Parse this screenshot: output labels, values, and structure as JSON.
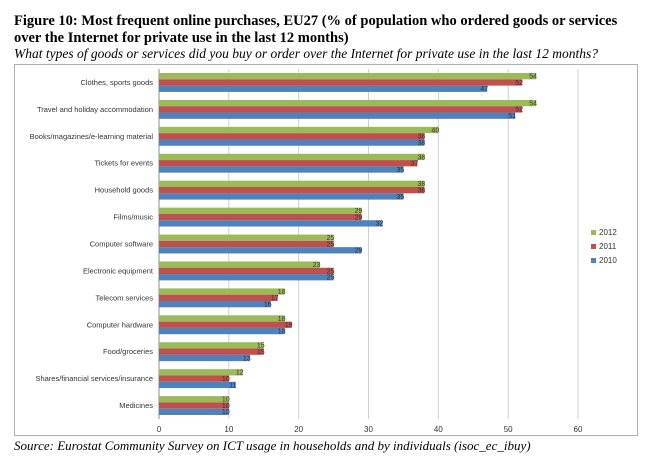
{
  "title": "Figure 10: Most frequent online purchases, EU27 (% of population who ordered goods or services over the Internet for private use in the last 12 months)",
  "subtitle": "What types of goods or services did you buy or order over the Internet for private use in the last 12 months?",
  "source": "Source: Eurostat Community Survey on ICT usage in households and by individuals (isoc_ec_ibuy)",
  "chart_data": {
    "type": "bar",
    "orientation": "horizontal",
    "categories": [
      "Clothes, sports goods",
      "Travel and holiday accommodation",
      "Books/magazines/e-learning material",
      "Tickets for events",
      "Household goods",
      "Films/music",
      "Computer software",
      "Electronic equipment",
      "Telecom services",
      "Computer hardware",
      "Food/groceries",
      "Shares/financial services/insurance",
      "Medicines"
    ],
    "series": [
      {
        "name": "2012",
        "color": "#9bbb59",
        "values": [
          54,
          54,
          40,
          38,
          38,
          29,
          25,
          23,
          18,
          18,
          15,
          12,
          10
        ]
      },
      {
        "name": "2011",
        "color": "#c0504d",
        "values": [
          52,
          52,
          38,
          37,
          38,
          29,
          25,
          25,
          17,
          19,
          15,
          10,
          10
        ]
      },
      {
        "name": "2010",
        "color": "#4f81bd",
        "values": [
          47,
          51,
          38,
          35,
          35,
          32,
          29,
          25,
          16,
          18,
          13,
          11,
          10
        ]
      }
    ],
    "xlim": [
      0,
      60
    ],
    "xticks": [
      0,
      10,
      20,
      30,
      40,
      50,
      60
    ],
    "grid": true,
    "legend_position": "right"
  }
}
